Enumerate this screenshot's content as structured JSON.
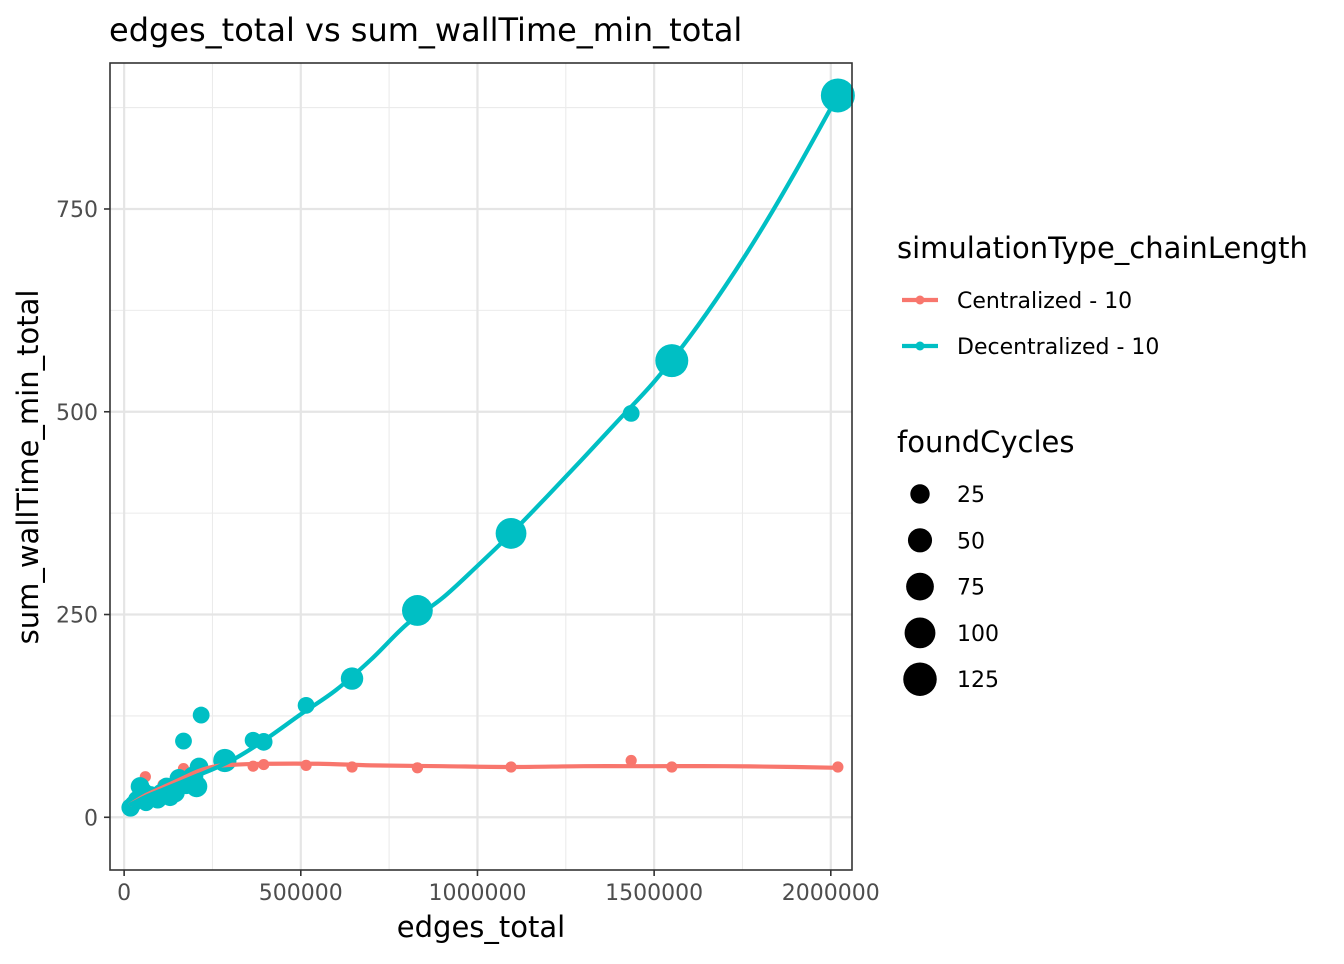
{
  "chart_data": {
    "type": "scatter",
    "title": "edges_total  vs  sum_wallTime_min_total",
    "xlabel": "edges_total",
    "ylabel": "sum_wallTime_min_total",
    "xlim": [
      -40000,
      2060000
    ],
    "ylim": [
      -65,
      930
    ],
    "x_ticks": [
      0,
      500000,
      1000000,
      1500000,
      2000000
    ],
    "x_tick_labels": [
      "0",
      "500000",
      "1000000",
      "1500000",
      "2000000"
    ],
    "y_ticks": [
      0,
      250,
      500,
      750
    ],
    "y_tick_labels": [
      "0",
      "250",
      "500",
      "750"
    ],
    "grid": true,
    "legend_position": "right",
    "color_legend": {
      "title": "simulationType_chainLength",
      "entries": [
        {
          "label": "Centralized - 10",
          "color": "#F8766D"
        },
        {
          "label": "Decentralized - 10",
          "color": "#00BFC4"
        }
      ]
    },
    "size_legend": {
      "title": "foundCycles",
      "entries": [
        {
          "label": "25",
          "value": 25
        },
        {
          "label": "50",
          "value": 50
        },
        {
          "label": "75",
          "value": 75
        },
        {
          "label": "100",
          "value": 100
        },
        {
          "label": "125",
          "value": 125
        }
      ]
    },
    "series": [
      {
        "name": "Centralized - 10",
        "color": "#F8766D",
        "points": [
          {
            "x": 20000,
            "y": 12,
            "size": 2
          },
          {
            "x": 45000,
            "y": 28,
            "size": 2
          },
          {
            "x": 60000,
            "y": 50,
            "size": 2
          },
          {
            "x": 90000,
            "y": 25,
            "size": 2
          },
          {
            "x": 110000,
            "y": 40,
            "size": 2
          },
          {
            "x": 130000,
            "y": 32,
            "size": 2
          },
          {
            "x": 150000,
            "y": 48,
            "size": 2
          },
          {
            "x": 168000,
            "y": 60,
            "size": 2
          },
          {
            "x": 200000,
            "y": 55,
            "size": 2
          },
          {
            "x": 215000,
            "y": 62,
            "size": 2
          },
          {
            "x": 290000,
            "y": 68,
            "size": 2
          },
          {
            "x": 365000,
            "y": 63,
            "size": 2
          },
          {
            "x": 395000,
            "y": 65,
            "size": 2
          },
          {
            "x": 515000,
            "y": 64,
            "size": 2
          },
          {
            "x": 645000,
            "y": 62,
            "size": 2
          },
          {
            "x": 830000,
            "y": 61,
            "size": 2
          },
          {
            "x": 1095000,
            "y": 62,
            "size": 2
          },
          {
            "x": 1435000,
            "y": 70,
            "size": 2
          },
          {
            "x": 1550000,
            "y": 62,
            "size": 2
          },
          {
            "x": 2020000,
            "y": 62,
            "size": 2
          }
        ],
        "trend": [
          {
            "x": 15000,
            "y": 15
          },
          {
            "x": 60000,
            "y": 27
          },
          {
            "x": 110000,
            "y": 37
          },
          {
            "x": 160000,
            "y": 47
          },
          {
            "x": 210000,
            "y": 57
          },
          {
            "x": 260000,
            "y": 63
          },
          {
            "x": 320000,
            "y": 65
          },
          {
            "x": 400000,
            "y": 66
          },
          {
            "x": 550000,
            "y": 66
          },
          {
            "x": 700000,
            "y": 64
          },
          {
            "x": 900000,
            "y": 63
          },
          {
            "x": 1100000,
            "y": 62
          },
          {
            "x": 1300000,
            "y": 63
          },
          {
            "x": 1500000,
            "y": 63
          },
          {
            "x": 1700000,
            "y": 63
          },
          {
            "x": 1900000,
            "y": 62
          },
          {
            "x": 2020000,
            "y": 61
          }
        ]
      },
      {
        "name": "Decentralized - 10",
        "color": "#00BFC4",
        "points": [
          {
            "x": 18000,
            "y": 12,
            "size": 20
          },
          {
            "x": 25000,
            "y": 16,
            "size": 15
          },
          {
            "x": 35000,
            "y": 22,
            "size": 15
          },
          {
            "x": 45000,
            "y": 38,
            "size": 22
          },
          {
            "x": 55000,
            "y": 32,
            "size": 18
          },
          {
            "x": 62000,
            "y": 18,
            "size": 15
          },
          {
            "x": 75000,
            "y": 28,
            "size": 15
          },
          {
            "x": 95000,
            "y": 22,
            "size": 20
          },
          {
            "x": 105000,
            "y": 30,
            "size": 20
          },
          {
            "x": 120000,
            "y": 38,
            "size": 18
          },
          {
            "x": 130000,
            "y": 25,
            "size": 20
          },
          {
            "x": 145000,
            "y": 30,
            "size": 22
          },
          {
            "x": 155000,
            "y": 48,
            "size": 22
          },
          {
            "x": 168000,
            "y": 94,
            "size": 15
          },
          {
            "x": 175000,
            "y": 40,
            "size": 22
          },
          {
            "x": 195000,
            "y": 50,
            "size": 30
          },
          {
            "x": 205000,
            "y": 38,
            "size": 35
          },
          {
            "x": 212000,
            "y": 62,
            "size": 22
          },
          {
            "x": 218000,
            "y": 126,
            "size": 15
          },
          {
            "x": 285000,
            "y": 70,
            "size": 45
          },
          {
            "x": 365000,
            "y": 95,
            "size": 15
          },
          {
            "x": 395000,
            "y": 93,
            "size": 18
          },
          {
            "x": 515000,
            "y": 138,
            "size": 15
          },
          {
            "x": 645000,
            "y": 171,
            "size": 40
          },
          {
            "x": 830000,
            "y": 255,
            "size": 100
          },
          {
            "x": 1095000,
            "y": 350,
            "size": 100
          },
          {
            "x": 1435000,
            "y": 498,
            "size": 15
          },
          {
            "x": 1550000,
            "y": 563,
            "size": 120
          },
          {
            "x": 2020000,
            "y": 890,
            "size": 130
          }
        ],
        "trend": [
          {
            "x": 15000,
            "y": 15
          },
          {
            "x": 60000,
            "y": 25
          },
          {
            "x": 110000,
            "y": 34
          },
          {
            "x": 160000,
            "y": 43
          },
          {
            "x": 210000,
            "y": 52
          },
          {
            "x": 260000,
            "y": 61
          },
          {
            "x": 320000,
            "y": 74
          },
          {
            "x": 400000,
            "y": 96
          },
          {
            "x": 500000,
            "y": 127
          },
          {
            "x": 600000,
            "y": 157
          },
          {
            "x": 700000,
            "y": 195
          },
          {
            "x": 800000,
            "y": 238
          },
          {
            "x": 900000,
            "y": 270
          },
          {
            "x": 1000000,
            "y": 310
          },
          {
            "x": 1100000,
            "y": 352
          },
          {
            "x": 1200000,
            "y": 397
          },
          {
            "x": 1300000,
            "y": 443
          },
          {
            "x": 1400000,
            "y": 490
          },
          {
            "x": 1500000,
            "y": 537
          },
          {
            "x": 1600000,
            "y": 592
          },
          {
            "x": 1700000,
            "y": 654
          },
          {
            "x": 1800000,
            "y": 722
          },
          {
            "x": 1900000,
            "y": 796
          },
          {
            "x": 2020000,
            "y": 890
          }
        ]
      }
    ]
  }
}
